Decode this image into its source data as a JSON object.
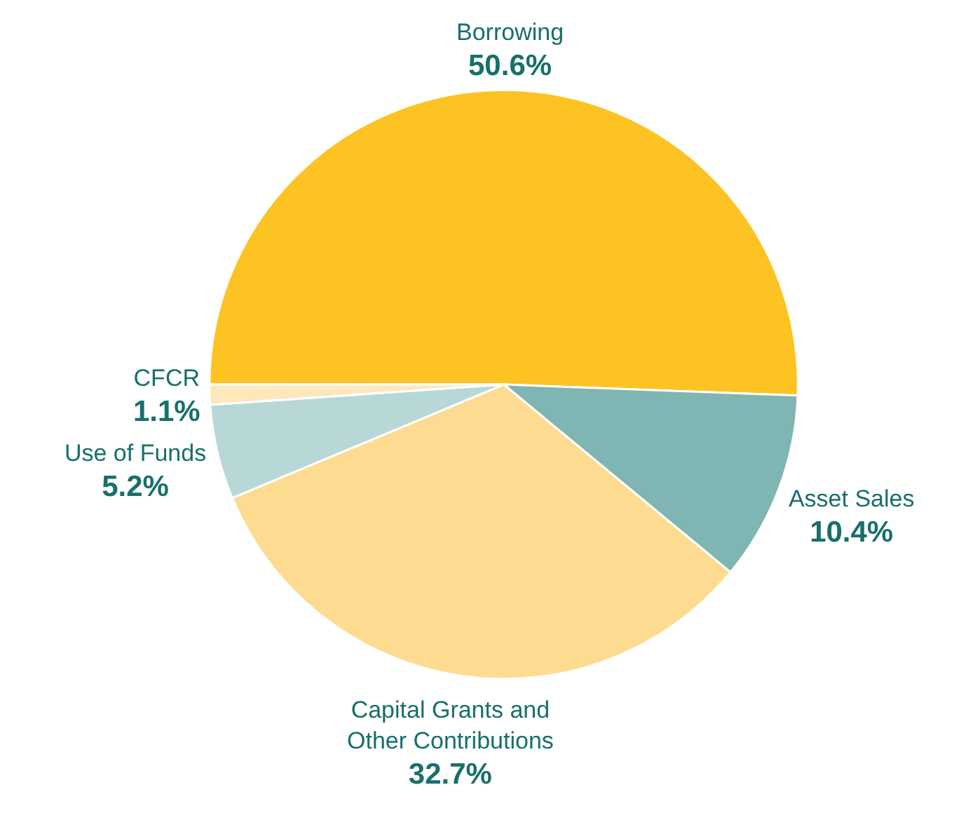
{
  "chart_data": {
    "type": "pie",
    "categories": [
      "Borrowing",
      "Asset Sales",
      "Capital Grants and Other Contributions",
      "Use of Funds",
      "CFCR"
    ],
    "values": [
      50.6,
      10.4,
      32.7,
      5.2,
      1.1
    ],
    "colors": [
      "#fcc322",
      "#7fb5b3",
      "#fddc92",
      "#b8d8d7",
      "#fde8bc"
    ],
    "value_labels": [
      "50.6%",
      "10.4%",
      "32.7%",
      "5.2%",
      "1.1%"
    ],
    "legend": false
  }
}
